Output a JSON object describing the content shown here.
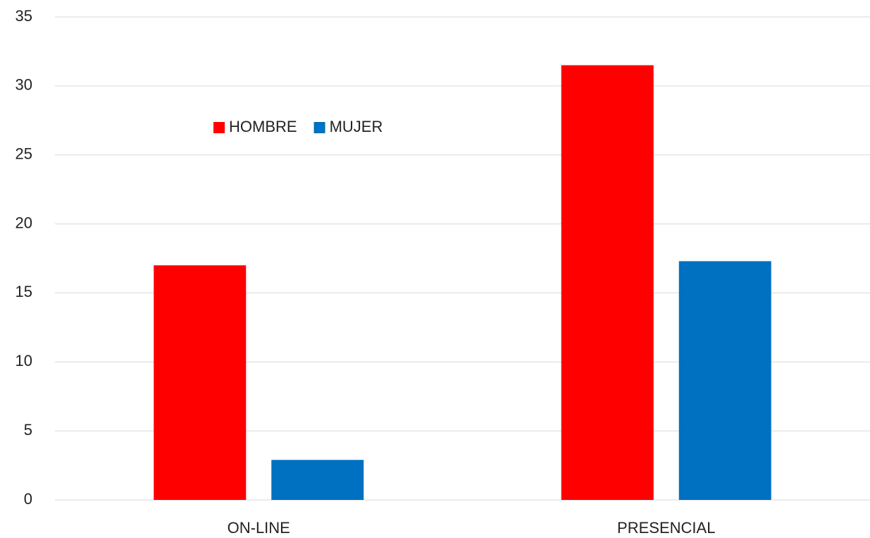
{
  "chart_data": {
    "type": "bar",
    "categories": [
      "ON-LINE",
      "PRESENCIAL"
    ],
    "series": [
      {
        "name": "HOMBRE",
        "color": "#ff0000",
        "values": [
          17.0,
          31.5
        ]
      },
      {
        "name": "MUJER",
        "color": "#0070c0",
        "values": [
          2.9,
          17.3
        ]
      }
    ],
    "ylim": [
      0,
      35
    ],
    "yticks": [
      0,
      5,
      10,
      15,
      20,
      25,
      30,
      35
    ],
    "grid": true,
    "legend": "top-left"
  }
}
